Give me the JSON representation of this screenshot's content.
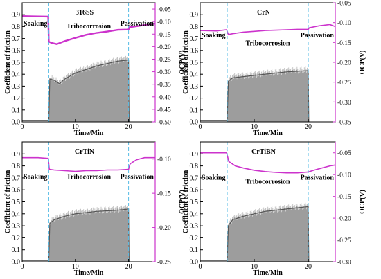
{
  "colors": {
    "cof": "#8c8c8c",
    "ocp": "#cc33cc",
    "phase_line": "#55bbe6",
    "axis": "#000000"
  },
  "chart_data": [
    {
      "type": "line",
      "title": "316SS",
      "xlabel": "Time/Min",
      "ylabel_left": "Coefficient of friction",
      "ylabel_right": "OCP(V)",
      "xlim": [
        0,
        25
      ],
      "xticks": [
        0,
        10,
        20
      ],
      "ylim_left": [
        0,
        1.0
      ],
      "yticks_left": [
        0.0,
        0.1,
        0.2,
        0.3,
        0.4,
        0.5,
        0.6,
        0.7,
        0.8,
        0.9
      ],
      "ylim_right": [
        -0.5,
        -0.025
      ],
      "yticks_right": [
        -0.05,
        -0.1,
        -0.15,
        -0.2,
        -0.25,
        -0.3,
        -0.35,
        -0.4,
        -0.45,
        -0.5
      ],
      "phase_boundaries": [
        5,
        20
      ],
      "phase_labels": [
        "Soaking",
        "Tribocorrosion",
        "Passivation"
      ],
      "series": [
        {
          "name": "COF",
          "axis": "left",
          "x": [
            0,
            5,
            5.2,
            6,
            7,
            8,
            10,
            12,
            14,
            16,
            18,
            20,
            20.1
          ],
          "y": [
            0.01,
            0.01,
            0.36,
            0.35,
            0.32,
            0.36,
            0.41,
            0.44,
            0.47,
            0.49,
            0.51,
            0.52,
            0.0
          ]
        },
        {
          "name": "OCP",
          "axis": "right",
          "x": [
            0,
            2,
            4.9,
            5,
            5.5,
            6.5,
            8,
            10,
            12,
            14,
            16,
            18,
            20,
            20.1,
            22,
            25
          ],
          "y": [
            -0.078,
            -0.079,
            -0.08,
            -0.18,
            -0.185,
            -0.19,
            -0.178,
            -0.165,
            -0.153,
            -0.145,
            -0.14,
            -0.133,
            -0.132,
            -0.123,
            -0.117,
            -0.108
          ]
        }
      ]
    },
    {
      "type": "line",
      "title": "CrN",
      "xlabel": "Time/Min",
      "ylabel_left": "Coefficient of friction",
      "ylabel_right": "OCP(V)",
      "xlim": [
        0,
        25
      ],
      "xticks": [
        0,
        10,
        20
      ],
      "ylim_left": [
        0,
        1.0
      ],
      "yticks_left": [
        0.0,
        0.1,
        0.2,
        0.3,
        0.4,
        0.5,
        0.6,
        0.7,
        0.8,
        0.9
      ],
      "ylim_right": [
        -0.35,
        -0.05
      ],
      "yticks_right": [
        -0.05,
        -0.1,
        -0.15,
        -0.2,
        -0.25,
        -0.3,
        -0.35
      ],
      "phase_boundaries": [
        5,
        20
      ],
      "phase_labels": [
        "Soaking",
        "Tribocorrosion",
        "Passivation"
      ],
      "series": [
        {
          "name": "COF",
          "axis": "left",
          "x": [
            0,
            5,
            5.2,
            6,
            8,
            10,
            12,
            14,
            16,
            18,
            20,
            20.1
          ],
          "y": [
            0.01,
            0.01,
            0.34,
            0.37,
            0.38,
            0.39,
            0.4,
            0.41,
            0.42,
            0.425,
            0.43,
            0.0
          ]
        },
        {
          "name": "OCP",
          "axis": "right",
          "x": [
            0,
            3,
            4.9,
            5.2,
            6,
            8,
            10,
            12,
            14,
            16,
            18,
            20,
            20.2,
            22,
            24,
            25
          ],
          "y": [
            -0.12,
            -0.121,
            -0.118,
            -0.13,
            -0.128,
            -0.124,
            -0.122,
            -0.12,
            -0.119,
            -0.118,
            -0.117,
            -0.117,
            -0.113,
            -0.108,
            -0.105,
            -0.11
          ]
        }
      ]
    },
    {
      "type": "line",
      "title": "CrTiN",
      "xlabel": "Time/Min",
      "ylabel_left": "Coefficient of friction",
      "ylabel_right": "OCP(V)",
      "xlim": [
        0,
        25
      ],
      "xticks": [
        0,
        10,
        20
      ],
      "ylim_left": [
        0,
        1.0
      ],
      "yticks_left": [
        0.0,
        0.1,
        0.2,
        0.3,
        0.4,
        0.5,
        0.6,
        0.7,
        0.8,
        0.9
      ],
      "ylim_right": [
        -0.25,
        -0.075
      ],
      "yticks_right": [
        -0.1,
        -0.15,
        -0.2,
        -0.25
      ],
      "phase_boundaries": [
        5,
        20
      ],
      "phase_labels": [
        "Soaking",
        "Tribocorrosion",
        "Passivation"
      ],
      "series": [
        {
          "name": "COF",
          "axis": "left",
          "x": [
            0,
            5,
            5.2,
            6,
            8,
            10,
            12,
            14,
            16,
            18,
            20,
            20.1
          ],
          "y": [
            0.01,
            0.01,
            0.32,
            0.35,
            0.38,
            0.4,
            0.41,
            0.42,
            0.425,
            0.43,
            0.44,
            0.0
          ]
        },
        {
          "name": "OCP",
          "axis": "right",
          "x": [
            0,
            3,
            4.9,
            5.1,
            6,
            8,
            10,
            12,
            14,
            16,
            18,
            20,
            20.3,
            21.5,
            23,
            25
          ],
          "y": [
            -0.098,
            -0.098,
            -0.099,
            -0.115,
            -0.116,
            -0.117,
            -0.118,
            -0.117,
            -0.117,
            -0.116,
            -0.116,
            -0.115,
            -0.107,
            -0.101,
            -0.098,
            -0.098
          ]
        }
      ]
    },
    {
      "type": "line",
      "title": "CrTiBN",
      "xlabel": "Time/Min",
      "ylabel_left": "Coefficient of friction",
      "ylabel_right": "OCP(V)",
      "xlim": [
        0,
        25
      ],
      "xticks": [
        0,
        10,
        20
      ],
      "ylim_left": [
        0,
        1.0
      ],
      "yticks_left": [
        0.0,
        0.1,
        0.2,
        0.3,
        0.4,
        0.5,
        0.6,
        0.7,
        0.8,
        0.9
      ],
      "ylim_right": [
        -0.3,
        -0.025
      ],
      "yticks_right": [
        -0.05,
        -0.1,
        -0.15,
        -0.2,
        -0.25,
        -0.3
      ],
      "phase_boundaries": [
        5,
        20
      ],
      "phase_labels": [
        "Soaking",
        "Tribocorrosion",
        "Passivation"
      ],
      "series": [
        {
          "name": "COF",
          "axis": "left",
          "x": [
            0,
            5,
            5.2,
            6,
            8,
            10,
            12,
            14,
            16,
            18,
            20,
            20.1
          ],
          "y": [
            0.01,
            0.01,
            0.3,
            0.35,
            0.38,
            0.4,
            0.42,
            0.43,
            0.44,
            0.45,
            0.46,
            0.0
          ]
        },
        {
          "name": "OCP",
          "axis": "right",
          "x": [
            0,
            3,
            4.9,
            5.3,
            6.5,
            8,
            10,
            12,
            14,
            16,
            18,
            20,
            21,
            22.5,
            24,
            25
          ],
          "y": [
            -0.05,
            -0.05,
            -0.05,
            -0.07,
            -0.08,
            -0.085,
            -0.09,
            -0.093,
            -0.095,
            -0.096,
            -0.096,
            -0.094,
            -0.09,
            -0.085,
            -0.08,
            -0.078
          ]
        }
      ]
    }
  ]
}
